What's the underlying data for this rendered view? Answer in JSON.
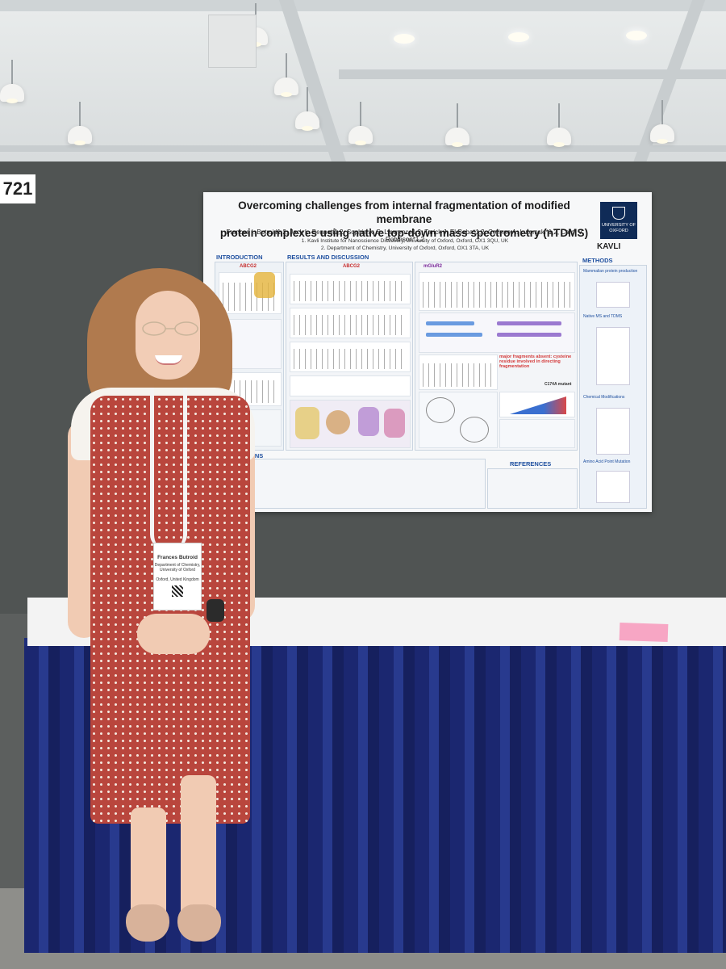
{
  "booth": {
    "number": "721"
  },
  "poster": {
    "title_line1": "Overcoming challenges from internal fragmentation of modified membrane",
    "title_line2": "protein complexes using native top-down mass spectrometry (nTDMS)",
    "authors": "Frances I. Butroid1,2, Jack L. Bennett1,2, Sophie A. S. Lawrence1,2, Tarick J. El-Baba*1,2, Corinne A. Lutomski*1,2, Carol V. Robinson*1,2",
    "affiliation1": "1. Kavli Institute for Nanoscience Discovery, University of Oxford, Oxford, OX1 3QU, UK",
    "affiliation2": "2. Department of Chemistry, University of Oxford, Oxford, OX1 3TA, UK",
    "oxford_logo": "UNIVERSITY OF OXFORD",
    "kavli_logo": "KAVLI",
    "sections": {
      "introduction": "INTRODUCTION",
      "results": "RESULTS AND DISCUSSION",
      "methods": "METHODS",
      "references": "REFERENCES",
      "conclusions": "ONS"
    },
    "labels": {
      "abcg2_intro": "ABCG2",
      "abcg2_results": "ABCG2",
      "mglur2": "mGluR2",
      "c_term": "C174A mutant",
      "fragments_note": "major fragments absent: cysteine residue involved in directing fragmentation"
    },
    "methods_steps": [
      "Mammalian protein production",
      "Native MS and TDMS",
      "Chemical Modifications",
      "Amino Acid Point Mutation"
    ]
  },
  "badge": {
    "name": "Frances Butroid",
    "dept": "Department of Chemistry, University of Oxford",
    "location": "Oxford, United Kingdom"
  }
}
